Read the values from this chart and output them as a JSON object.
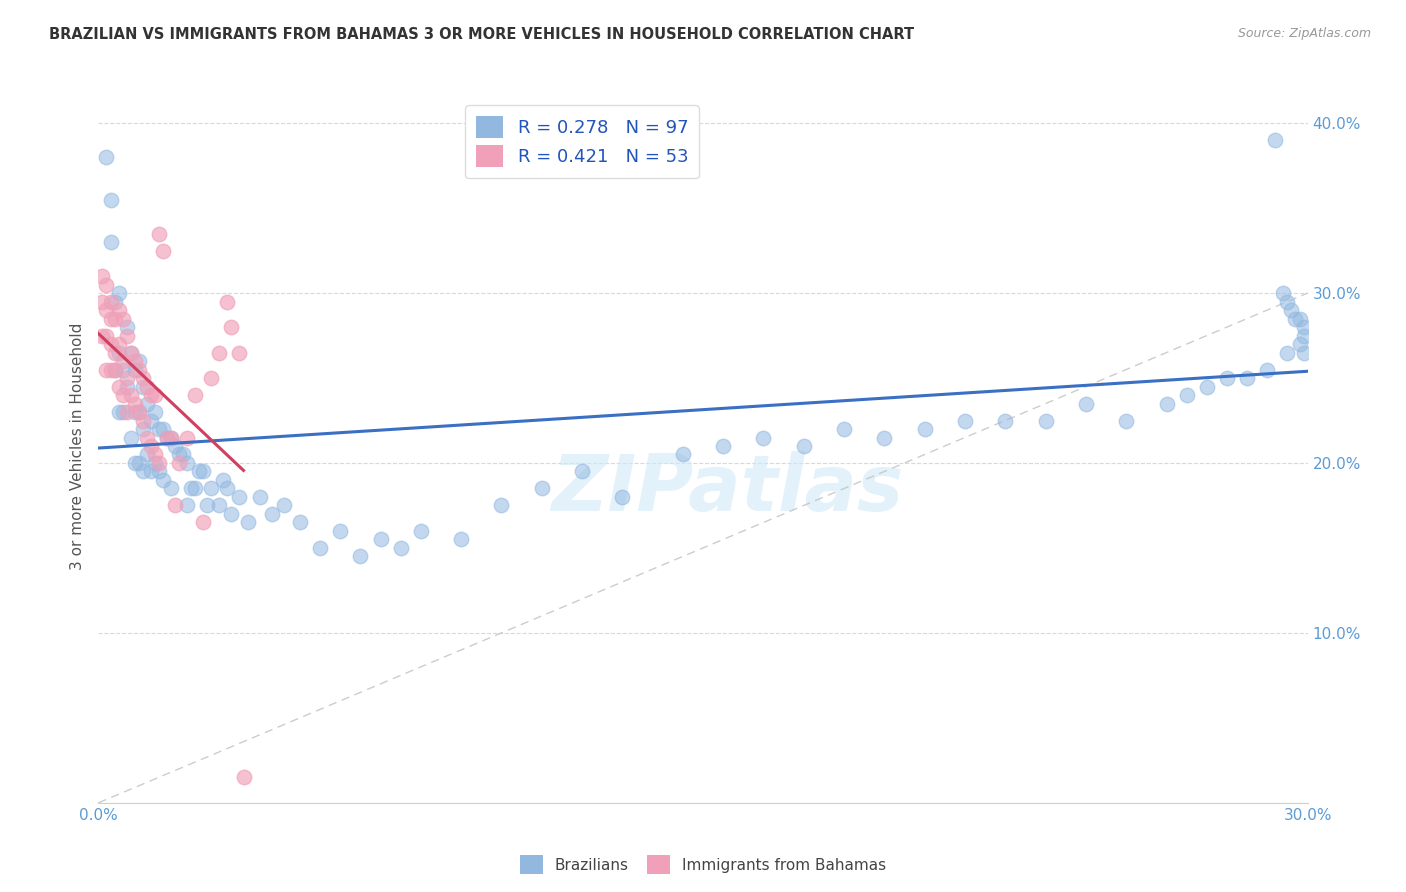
{
  "title": "BRAZILIAN VS IMMIGRANTS FROM BAHAMAS 3 OR MORE VEHICLES IN HOUSEHOLD CORRELATION CHART",
  "source": "Source: ZipAtlas.com",
  "ylabel_label": "3 or more Vehicles in Household",
  "xlim": [
    0.0,
    0.3
  ],
  "ylim": [
    0.0,
    0.42
  ],
  "xtick_labels": [
    "0.0%",
    "",
    "",
    "",
    "",
    "",
    "30.0%"
  ],
  "ytick_labels": [
    "",
    "10.0%",
    "20.0%",
    "30.0%",
    "40.0%"
  ],
  "legend_label_brazilians": "Brazilians",
  "legend_label_immigrants": "Immigrants from Bahamas",
  "blue_color": "#92b8e0",
  "pink_color": "#f0a0b8",
  "blue_line_color": "#3a6fc4",
  "pink_line_color": "#d04060",
  "R_blue": 0.278,
  "N_blue": 97,
  "R_pink": 0.421,
  "N_pink": 53,
  "watermark": "ZIPatlas",
  "blue_x": [
    0.002,
    0.003,
    0.003,
    0.004,
    0.004,
    0.005,
    0.005,
    0.005,
    0.006,
    0.006,
    0.007,
    0.007,
    0.008,
    0.008,
    0.009,
    0.009,
    0.009,
    0.01,
    0.01,
    0.01,
    0.011,
    0.011,
    0.011,
    0.012,
    0.012,
    0.013,
    0.013,
    0.014,
    0.014,
    0.015,
    0.015,
    0.016,
    0.016,
    0.017,
    0.018,
    0.018,
    0.019,
    0.02,
    0.021,
    0.022,
    0.022,
    0.023,
    0.024,
    0.025,
    0.026,
    0.027,
    0.028,
    0.03,
    0.031,
    0.032,
    0.033,
    0.035,
    0.037,
    0.04,
    0.043,
    0.046,
    0.05,
    0.055,
    0.06,
    0.065,
    0.07,
    0.075,
    0.08,
    0.09,
    0.1,
    0.11,
    0.12,
    0.13,
    0.145,
    0.155,
    0.165,
    0.175,
    0.185,
    0.195,
    0.205,
    0.215,
    0.225,
    0.235,
    0.245,
    0.255,
    0.265,
    0.27,
    0.275,
    0.28,
    0.285,
    0.29,
    0.295,
    0.298,
    0.299,
    0.299,
    0.299,
    0.298,
    0.297,
    0.296,
    0.295,
    0.294,
    0.292
  ],
  "blue_y": [
    0.38,
    0.355,
    0.33,
    0.295,
    0.255,
    0.3,
    0.265,
    0.23,
    0.255,
    0.23,
    0.28,
    0.245,
    0.265,
    0.215,
    0.255,
    0.23,
    0.2,
    0.26,
    0.23,
    0.2,
    0.245,
    0.22,
    0.195,
    0.235,
    0.205,
    0.225,
    0.195,
    0.23,
    0.2,
    0.22,
    0.195,
    0.22,
    0.19,
    0.215,
    0.215,
    0.185,
    0.21,
    0.205,
    0.205,
    0.2,
    0.175,
    0.185,
    0.185,
    0.195,
    0.195,
    0.175,
    0.185,
    0.175,
    0.19,
    0.185,
    0.17,
    0.18,
    0.165,
    0.18,
    0.17,
    0.175,
    0.165,
    0.15,
    0.16,
    0.145,
    0.155,
    0.15,
    0.16,
    0.155,
    0.175,
    0.185,
    0.195,
    0.18,
    0.205,
    0.21,
    0.215,
    0.21,
    0.22,
    0.215,
    0.22,
    0.225,
    0.225,
    0.225,
    0.235,
    0.225,
    0.235,
    0.24,
    0.245,
    0.25,
    0.25,
    0.255,
    0.265,
    0.27,
    0.265,
    0.275,
    0.28,
    0.285,
    0.285,
    0.29,
    0.295,
    0.3,
    0.39
  ],
  "pink_x": [
    0.001,
    0.001,
    0.001,
    0.002,
    0.002,
    0.002,
    0.002,
    0.003,
    0.003,
    0.003,
    0.003,
    0.004,
    0.004,
    0.004,
    0.005,
    0.005,
    0.005,
    0.006,
    0.006,
    0.006,
    0.007,
    0.007,
    0.007,
    0.008,
    0.008,
    0.009,
    0.009,
    0.01,
    0.01,
    0.011,
    0.011,
    0.012,
    0.012,
    0.013,
    0.013,
    0.014,
    0.014,
    0.015,
    0.015,
    0.016,
    0.017,
    0.018,
    0.019,
    0.02,
    0.022,
    0.024,
    0.026,
    0.028,
    0.03,
    0.032,
    0.033,
    0.035,
    0.036
  ],
  "pink_y": [
    0.295,
    0.275,
    0.31,
    0.29,
    0.275,
    0.305,
    0.255,
    0.295,
    0.27,
    0.285,
    0.255,
    0.285,
    0.265,
    0.255,
    0.29,
    0.27,
    0.245,
    0.285,
    0.26,
    0.24,
    0.275,
    0.25,
    0.23,
    0.265,
    0.24,
    0.26,
    0.235,
    0.255,
    0.23,
    0.25,
    0.225,
    0.245,
    0.215,
    0.24,
    0.21,
    0.24,
    0.205,
    0.335,
    0.2,
    0.325,
    0.215,
    0.215,
    0.175,
    0.2,
    0.215,
    0.24,
    0.165,
    0.25,
    0.265,
    0.295,
    0.28,
    0.265,
    0.015
  ]
}
